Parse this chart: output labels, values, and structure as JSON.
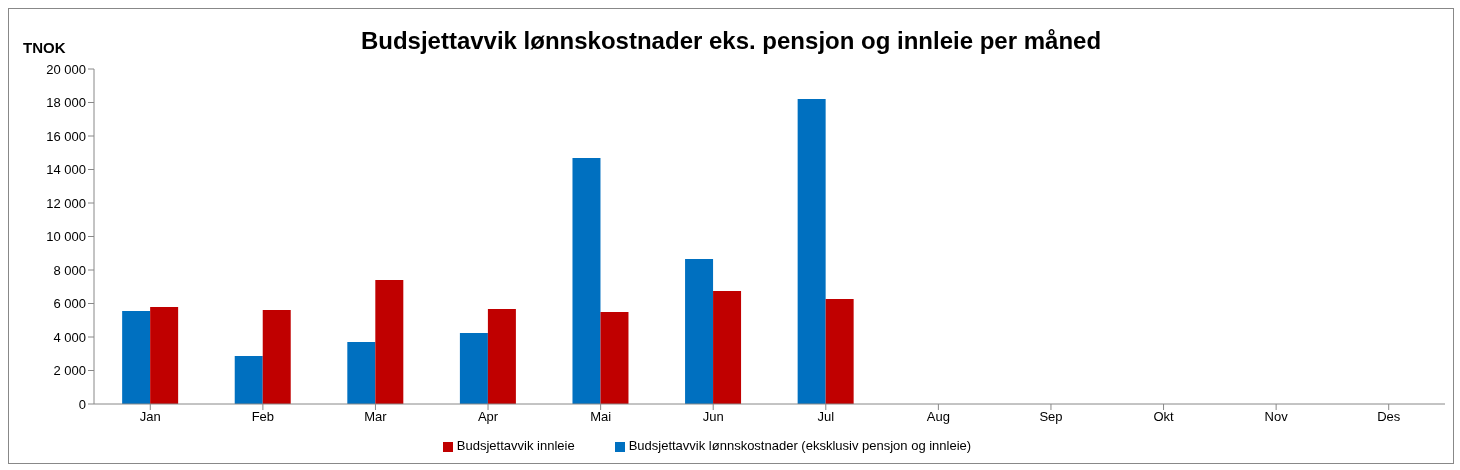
{
  "chart_data": {
    "type": "bar",
    "title": "Budsjettavvik lønnskostnader eks. pensjon og innleie per måned",
    "ylabel": "TNOK",
    "categories": [
      "Jan",
      "Feb",
      "Mar",
      "Apr",
      "Mai",
      "Jun",
      "Jul",
      "Aug",
      "Sep",
      "Okt",
      "Nov",
      "Des"
    ],
    "series": [
      {
        "name": "Budsjettavvik lønnskostnader (eksklusiv pensjon og innleie)",
        "color": "#0070c0",
        "values": [
          5550,
          2870,
          3700,
          4240,
          14690,
          8660,
          18210,
          null,
          null,
          null,
          null,
          null
        ]
      },
      {
        "name": "Budsjettavvik innleie",
        "color": "#c00000",
        "values": [
          5790,
          5610,
          7400,
          5670,
          5490,
          6750,
          6270,
          null,
          null,
          null,
          null,
          null
        ]
      }
    ],
    "ylim": [
      0,
      20000
    ],
    "yticks": [
      {
        "value": 0,
        "label": "0"
      },
      {
        "value": 2000,
        "label": "2 000"
      },
      {
        "value": 4000,
        "label": "4 000"
      },
      {
        "value": 6000,
        "label": "6 000"
      },
      {
        "value": 8000,
        "label": "8 000"
      },
      {
        "value": 10000,
        "label": "10 000"
      },
      {
        "value": 12000,
        "label": "12 000"
      },
      {
        "value": 14000,
        "label": "14 000"
      },
      {
        "value": 16000,
        "label": "16 000"
      },
      {
        "value": 18000,
        "label": "18 000"
      },
      {
        "value": 20000,
        "label": "20 000"
      }
    ],
    "legend": "bottom"
  }
}
